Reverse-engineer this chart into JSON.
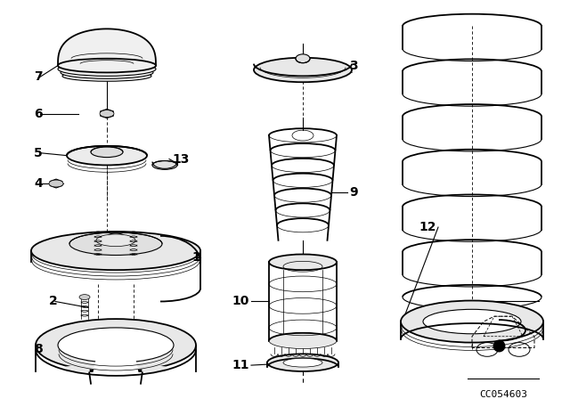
{
  "bg_color": "#ffffff",
  "line_color": "#000000",
  "text_color": "#000000",
  "diagram_code": "CC054603",
  "font_size_label": 10,
  "font_size_code": 8,
  "figsize": [
    6.4,
    4.48
  ],
  "dpi": 100
}
